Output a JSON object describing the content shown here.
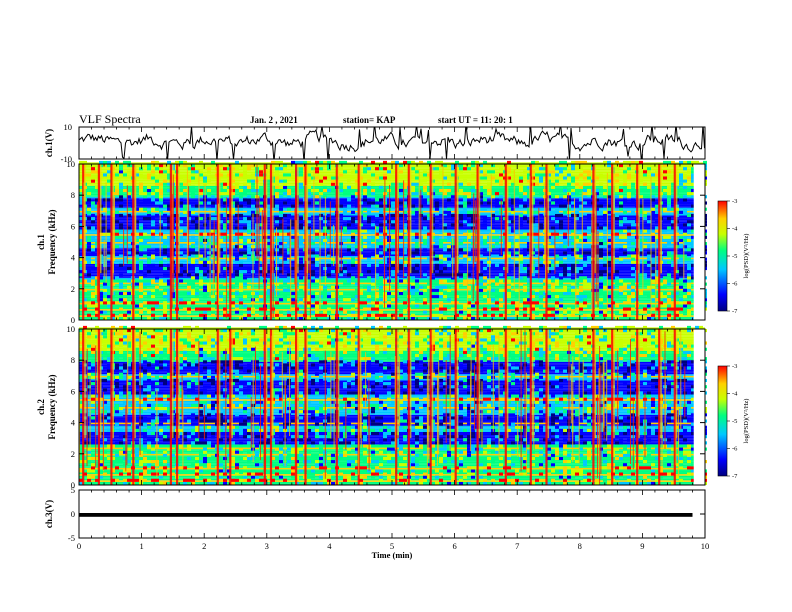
{
  "header": {
    "title": "VLF Spectra",
    "date": "Jan. 2 , 2021",
    "station": "station= KAP",
    "start": "start UT =  11: 20: 1"
  },
  "colors": {
    "background": "#ffffff",
    "axes": "#000000",
    "trace": "#000000",
    "colormap": [
      "#000080",
      "#0000ff",
      "#00c8ff",
      "#00ff80",
      "#c8ff00",
      "#ffd000",
      "#ff0000"
    ]
  },
  "chart_data": [
    {
      "type": "line",
      "ylabel": "ch.1(V)",
      "ylim": [
        -10,
        10
      ],
      "yticks": [
        "10",
        "-10"
      ],
      "xlim": [
        0,
        10
      ]
    },
    {
      "type": "heatmap",
      "ylabel": "ch.1\nFrequency (kHz)",
      "ylabel_lines": [
        "ch.1",
        "Frequency (kHz)"
      ],
      "ylim": [
        0,
        10
      ],
      "yticks": [
        "0",
        "2",
        "4",
        "6",
        "8",
        "10"
      ],
      "xlim": [
        0,
        10
      ],
      "colorbar": {
        "label": "log(PSD)(V²/Hz)",
        "range": [
          -7,
          -3
        ],
        "ticks": [
          "-3",
          "-4",
          "-5",
          "-6",
          "-7"
        ]
      },
      "frequency_structure_khz": {
        "high_power_bands": [
          0.2,
          0.6,
          1.0,
          1.9,
          2.3,
          3.9,
          4.9,
          5.4,
          6.9
        ],
        "low_power_bands": [
          [
            2.7,
            3.6
          ],
          [
            4.1,
            4.6
          ],
          [
            5.7,
            6.6
          ],
          [
            7.1,
            7.7
          ]
        ],
        "strong_impulses_min": [
          0.05,
          0.3,
          0.5,
          0.85,
          1.45,
          1.55,
          2.2,
          2.4,
          2.95,
          3.05,
          3.45,
          3.6,
          4.1,
          4.45,
          5.05,
          5.25,
          5.6,
          6.0,
          6.35,
          6.8,
          7.2,
          7.45,
          8.2,
          8.5,
          8.9,
          9.25,
          9.5
        ]
      }
    },
    {
      "type": "heatmap",
      "ylabel": "ch.2\nFrequency (kHz)",
      "ylabel_lines": [
        "ch.2",
        "Frequency (kHz)"
      ],
      "ylim": [
        0,
        10
      ],
      "yticks": [
        "0",
        "2",
        "4",
        "6",
        "8",
        "10"
      ],
      "xlim": [
        0,
        10
      ],
      "colorbar": {
        "label": "log(PSD)(V²/Hz)",
        "range": [
          -7,
          -3
        ],
        "ticks": [
          "-3",
          "-4",
          "-5",
          "-6",
          "-7"
        ]
      },
      "frequency_structure_khz": {
        "high_power_bands": [
          0.2,
          0.6,
          1.0,
          1.9,
          2.3,
          3.9,
          4.9,
          5.4,
          6.9
        ],
        "low_power_bands": [
          [
            2.6,
            3.4
          ],
          [
            3.8,
            4.5
          ],
          [
            5.7,
            6.6
          ],
          [
            7.0,
            7.8
          ]
        ],
        "strong_impulses_min": [
          0.05,
          0.3,
          0.5,
          0.85,
          1.45,
          1.55,
          2.2,
          2.4,
          2.95,
          3.05,
          3.45,
          3.6,
          4.1,
          4.45,
          5.05,
          5.25,
          5.6,
          6.0,
          6.35,
          6.8,
          7.2,
          7.45,
          8.2,
          8.5,
          8.9,
          9.25,
          9.5
        ]
      }
    },
    {
      "type": "line",
      "ylabel": "ch.3(V)",
      "ylim": [
        -5,
        5
      ],
      "yticks": [
        "5",
        "0",
        "-5"
      ],
      "xlim": [
        0,
        10
      ],
      "xlabel": "Time (min)",
      "xticks": [
        "0",
        "1",
        "2",
        "3",
        "4",
        "5",
        "6",
        "7",
        "8",
        "9",
        "10"
      ],
      "trace_value_band": [
        -0.6,
        0.2
      ],
      "data_end_min": 9.8
    }
  ]
}
